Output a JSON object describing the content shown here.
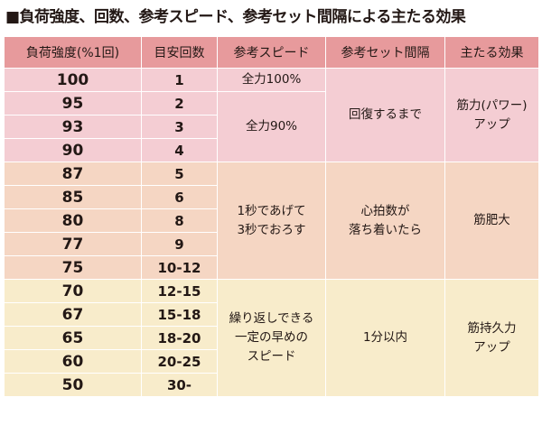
{
  "title": "■負荷強度、回数、参考スピード、参考セット間隔による主たる効果",
  "table": {
    "headers": [
      "負荷強度(%1回)",
      "目安回数",
      "参考スピード",
      "参考セット間隔",
      "主たる効果"
    ],
    "groups": [
      {
        "rows": [
          {
            "load": "100",
            "reps": "1"
          },
          {
            "load": "95",
            "reps": "2"
          },
          {
            "load": "93",
            "reps": "3"
          },
          {
            "load": "90",
            "reps": "4"
          }
        ],
        "speed_top": "全力100%",
        "speed_bottom": "全力90%",
        "interval": "回復するまで",
        "effect": [
          "筋力(パワー)",
          "アップ"
        ]
      },
      {
        "rows": [
          {
            "load": "87",
            "reps": "5"
          },
          {
            "load": "85",
            "reps": "6"
          },
          {
            "load": "80",
            "reps": "8"
          },
          {
            "load": "77",
            "reps": "9"
          },
          {
            "load": "75",
            "reps": "10-12"
          }
        ],
        "speed": [
          "1秒であげて",
          "3秒でおろす"
        ],
        "interval": [
          "心拍数が",
          "落ち着いたら"
        ],
        "effect": [
          "筋肥大"
        ]
      },
      {
        "rows": [
          {
            "load": "70",
            "reps": "12-15"
          },
          {
            "load": "67",
            "reps": "15-18"
          },
          {
            "load": "65",
            "reps": "18-20"
          },
          {
            "load": "60",
            "reps": "20-25"
          },
          {
            "load": "50",
            "reps": "30-"
          }
        ],
        "speed": [
          "繰り返しできる",
          "一定の早めの",
          "スピード"
        ],
        "interval": [
          "1分以内"
        ],
        "effect": [
          "筋持久力",
          "アップ"
        ]
      }
    ]
  },
  "colors": {
    "header": "#e79a9c",
    "group1": "#f4cdd3",
    "group2": "#f5d6c3",
    "group3": "#f8eccb"
  }
}
